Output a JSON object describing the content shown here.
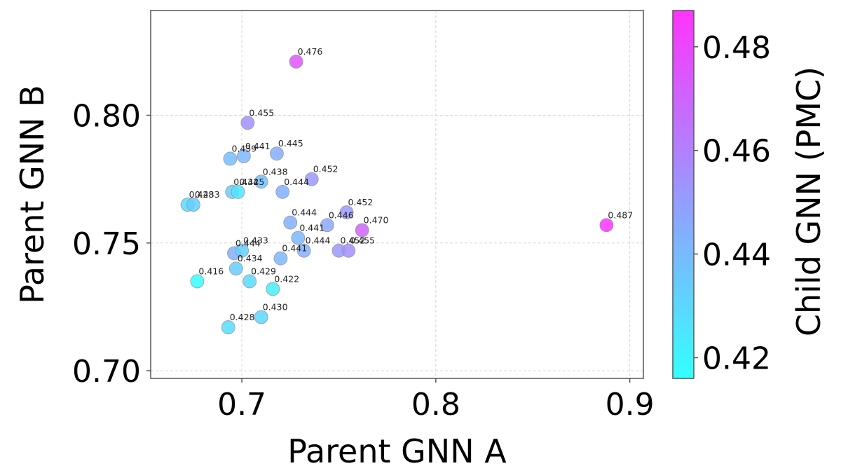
{
  "chart_data": {
    "type": "scatter",
    "xlabel": "Parent GNN A",
    "ylabel": "Parent GNN B",
    "xlim": [
      0.653,
      0.907
    ],
    "ylim": [
      0.697,
      0.841
    ],
    "xticks": [
      0.7,
      0.8,
      0.9
    ],
    "xtick_labels": [
      "0.7",
      "0.8",
      "0.9"
    ],
    "yticks": [
      0.7,
      0.75,
      0.8
    ],
    "ytick_labels": [
      "0.70",
      "0.75",
      "0.80"
    ],
    "grid": true,
    "colorbar": {
      "label": "Child GNN (PMC)",
      "colormap": "cool",
      "range": [
        0.416,
        0.487
      ],
      "ticks": [
        0.42,
        0.44,
        0.46,
        0.48
      ],
      "tick_labels": [
        "0.42",
        "0.44",
        "0.46",
        "0.48"
      ],
      "color_min": "#33ffff",
      "color_max": "#ff33ff"
    },
    "points": [
      {
        "x": 0.728,
        "y": 0.821,
        "value": 0.476,
        "label": "0.476"
      },
      {
        "x": 0.703,
        "y": 0.797,
        "value": 0.455,
        "label": "0.455"
      },
      {
        "x": 0.694,
        "y": 0.783,
        "value": 0.439,
        "label": "0.439"
      },
      {
        "x": 0.701,
        "y": 0.784,
        "value": 0.441,
        "label": "0.441"
      },
      {
        "x": 0.718,
        "y": 0.785,
        "value": 0.445,
        "label": "0.445"
      },
      {
        "x": 0.71,
        "y": 0.774,
        "value": 0.438,
        "label": "0.438"
      },
      {
        "x": 0.721,
        "y": 0.77,
        "value": 0.444,
        "label": "0.444"
      },
      {
        "x": 0.736,
        "y": 0.775,
        "value": 0.452,
        "label": "0.452"
      },
      {
        "x": 0.695,
        "y": 0.77,
        "value": 0.434,
        "label": "0.434"
      },
      {
        "x": 0.698,
        "y": 0.77,
        "value": 0.425,
        "label": "0.425"
      },
      {
        "x": 0.672,
        "y": 0.765,
        "value": 0.428,
        "label": "0.428"
      },
      {
        "x": 0.675,
        "y": 0.765,
        "value": 0.433,
        "label": "0.433"
      },
      {
        "x": 0.725,
        "y": 0.758,
        "value": 0.444,
        "label": "0.444"
      },
      {
        "x": 0.744,
        "y": 0.757,
        "value": 0.446,
        "label": "0.446"
      },
      {
        "x": 0.754,
        "y": 0.762,
        "value": 0.452,
        "label": "0.452"
      },
      {
        "x": 0.729,
        "y": 0.752,
        "value": 0.441,
        "label": "0.441"
      },
      {
        "x": 0.762,
        "y": 0.755,
        "value": 0.47,
        "label": "0.470"
      },
      {
        "x": 0.888,
        "y": 0.757,
        "value": 0.487,
        "label": "0.487"
      },
      {
        "x": 0.732,
        "y": 0.747,
        "value": 0.444,
        "label": "0.444"
      },
      {
        "x": 0.75,
        "y": 0.747,
        "value": 0.452,
        "label": "0.452"
      },
      {
        "x": 0.755,
        "y": 0.747,
        "value": 0.455,
        "label": "0.455"
      },
      {
        "x": 0.696,
        "y": 0.746,
        "value": 0.444,
        "label": "0.444"
      },
      {
        "x": 0.7,
        "y": 0.747,
        "value": 0.433,
        "label": "0.433"
      },
      {
        "x": 0.72,
        "y": 0.744,
        "value": 0.441,
        "label": "0.441"
      },
      {
        "x": 0.697,
        "y": 0.74,
        "value": 0.434,
        "label": "0.434"
      },
      {
        "x": 0.677,
        "y": 0.735,
        "value": 0.416,
        "label": "0.416"
      },
      {
        "x": 0.704,
        "y": 0.735,
        "value": 0.429,
        "label": "0.429"
      },
      {
        "x": 0.716,
        "y": 0.732,
        "value": 0.422,
        "label": "0.422"
      },
      {
        "x": 0.71,
        "y": 0.721,
        "value": 0.43,
        "label": "0.430"
      },
      {
        "x": 0.693,
        "y": 0.717,
        "value": 0.428,
        "label": "0.428"
      }
    ]
  }
}
